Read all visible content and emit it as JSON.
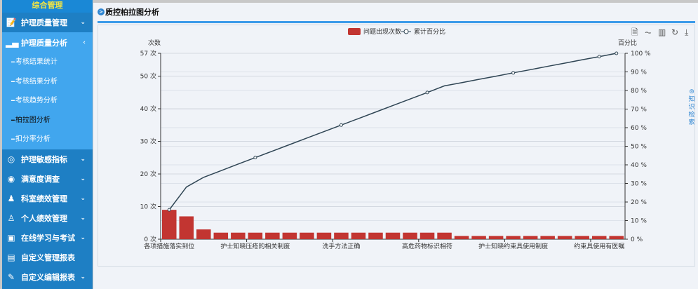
{
  "sidebar": {
    "brand": "综合管理",
    "items": [
      {
        "label": "护理质量管理",
        "icon": "edit-icon"
      },
      {
        "label": "护理质量分析",
        "icon": "bar-chart-icon",
        "sub": [
          "考核结果统计",
          "考核结果分析",
          "考核趋势分析",
          "柏拉图分析",
          "扣分率分析"
        ],
        "active_sub": "柏拉图分析"
      },
      {
        "label": "护理敏感指标",
        "icon": "target-icon"
      },
      {
        "label": "满意度调查",
        "icon": "thumbs-up-icon"
      },
      {
        "label": "科室绩效管理",
        "icon": "org-icon"
      },
      {
        "label": "个人绩效管理",
        "icon": "user-lock-icon"
      },
      {
        "label": "在线学习与考试",
        "icon": "board-icon"
      },
      {
        "label": "自定义管理报表",
        "icon": "report-icon"
      },
      {
        "label": "自定义编辑报表",
        "icon": "edit-report-icon"
      }
    ]
  },
  "page": {
    "title": "质控柏拉图分析",
    "side_tab": "知识检索"
  },
  "toolbox": [
    "data-view-icon",
    "line-icon",
    "bar-icon",
    "refresh-icon",
    "download-icon"
  ],
  "chart_data": {
    "type": "bar+line",
    "legend": [
      "问题出现次数",
      "累计百分比"
    ],
    "legend_position": "top",
    "ylabel_left": "次数",
    "ylabel_right": "百分比",
    "yticks_left": [
      "0 次",
      "10 次",
      "20 次",
      "30 次",
      "40 次",
      "50 次",
      "57 次"
    ],
    "yticks_right": [
      "0 %",
      "10 %",
      "20 %",
      "30 %",
      "40 %",
      "50 %",
      "60 %",
      "70 %",
      "80 %",
      "90 %",
      "100 %"
    ],
    "ylim_left": [
      0,
      57
    ],
    "ylim_right": [
      0,
      100
    ],
    "categories": [
      "各项措施落实到位",
      "",
      "",
      "",
      "",
      "护士知晓压疮的相关制度",
      "",
      "",
      "",
      "",
      "洗手方法正确",
      "",
      "",
      "",
      "",
      "高危药物标识相符",
      "",
      "",
      "",
      "",
      "护士知晓约束具使用制度",
      "",
      "",
      "",
      "",
      "约束具使用有医嘱",
      ""
    ],
    "series": [
      {
        "name": "问题出现次数",
        "color": "#c23531",
        "values": [
          9,
          7,
          3,
          2,
          2,
          2,
          2,
          2,
          2,
          2,
          2,
          2,
          2,
          2,
          2,
          2,
          2,
          1,
          1,
          1,
          1,
          1,
          1,
          1,
          1,
          1,
          1
        ]
      },
      {
        "name": "累计百分比",
        "color": "#2f4554",
        "values": [
          15.8,
          28.1,
          33.3,
          36.8,
          40.4,
          43.9,
          47.4,
          50.9,
          54.4,
          57.9,
          61.4,
          64.9,
          68.4,
          71.9,
          75.4,
          78.9,
          82.5,
          84.2,
          86.0,
          87.7,
          89.5,
          91.2,
          93.0,
          94.7,
          96.5,
          98.2,
          100
        ]
      }
    ],
    "grid": true
  }
}
